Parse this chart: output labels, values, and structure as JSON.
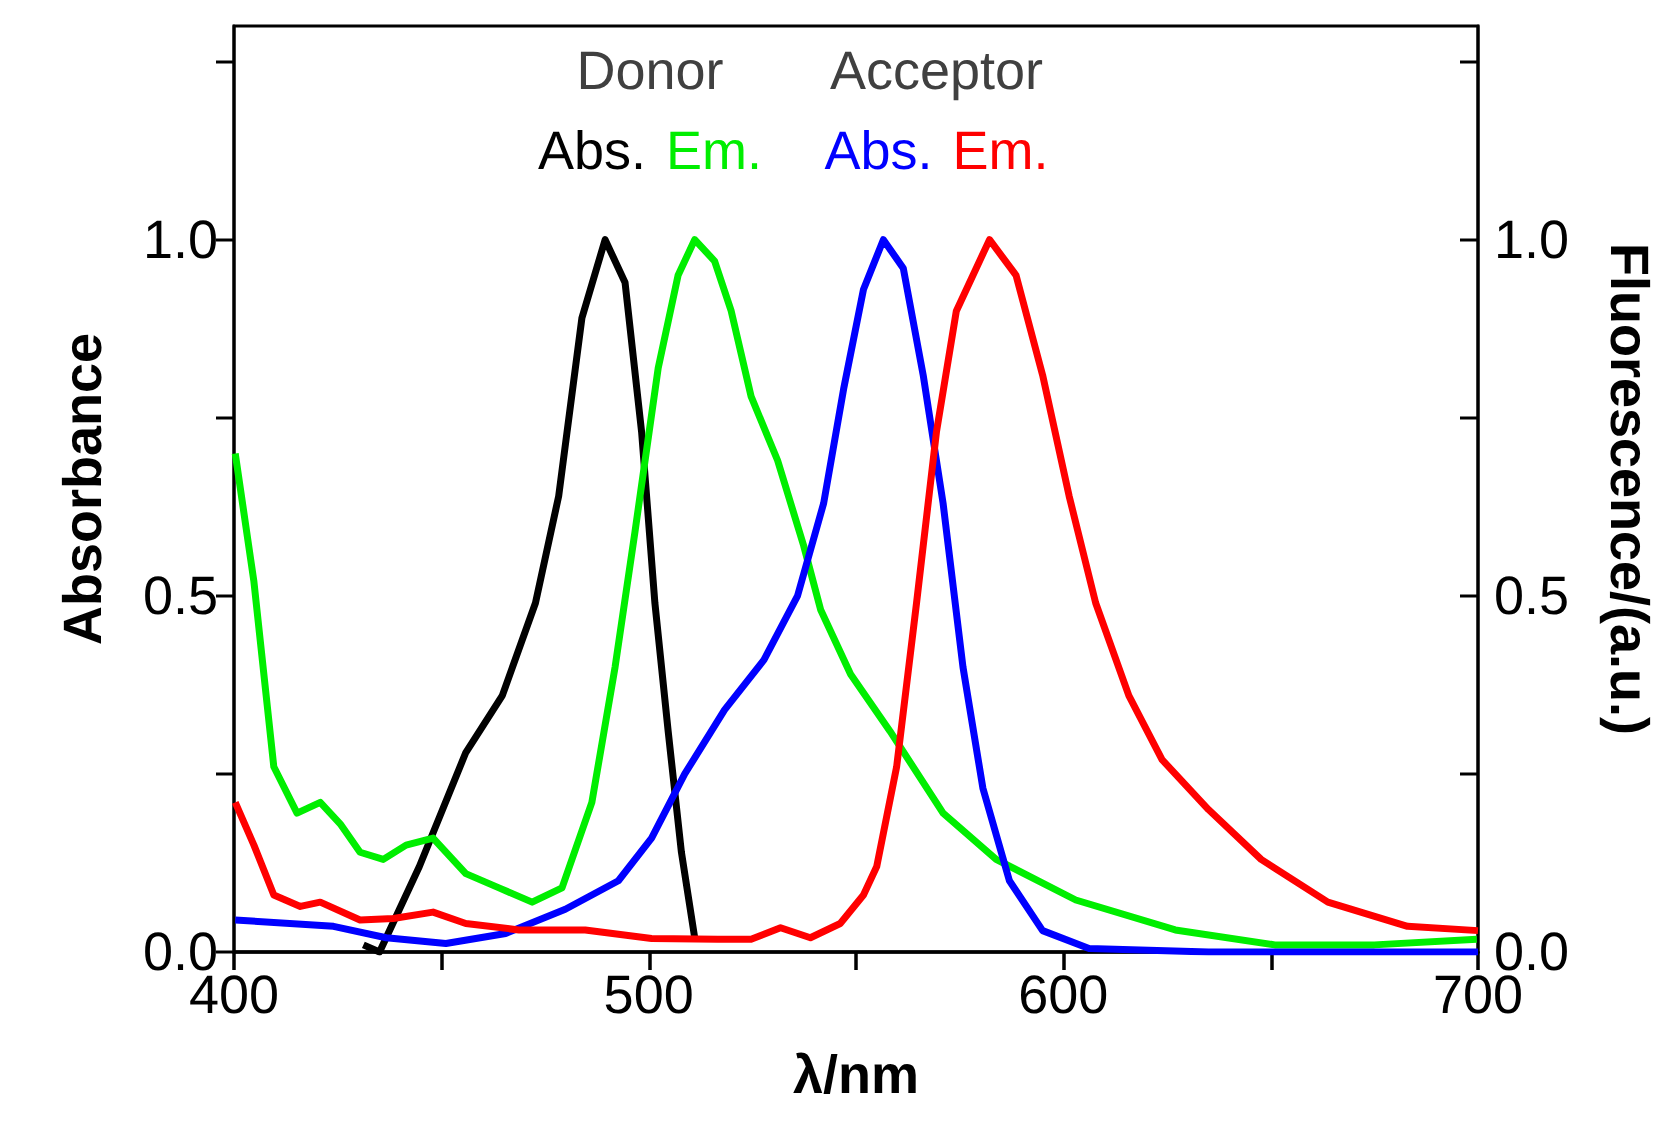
{
  "chart_data": {
    "type": "line",
    "xlabel": "λ/nm",
    "ylabel": "Absorbance",
    "y2label": "Fluorescence/(a.u.)",
    "annotations": [
      "Donor",
      "Acceptor"
    ],
    "xlim": [
      400,
      700
    ],
    "xticks": [
      400,
      {
        "value": 450,
        "label": null
      },
      500,
      {
        "value": 550,
        "label": null
      },
      600,
      {
        "value": 650,
        "label": null
      },
      700
    ],
    "ylim": [
      0,
      1.3
    ],
    "yticks": [
      {
        "value": 0,
        "label": "0.0"
      },
      {
        "value": 0.25,
        "label": null
      },
      0.5,
      {
        "value": 0.75,
        "label": null
      },
      {
        "value": 1,
        "label": "1.0"
      },
      {
        "value": 1.25,
        "label": null
      }
    ],
    "y2lim": [
      0,
      1.3
    ],
    "y2ticks": [
      {
        "value": 0,
        "label": "0.0"
      },
      {
        "value": 0.25,
        "label": null
      },
      0.5,
      {
        "value": 0.75,
        "label": null
      },
      {
        "value": 1,
        "label": "1.0"
      },
      {
        "value": 1.25,
        "label": null
      }
    ],
    "series": [
      {
        "name": "Abs.",
        "color": "#000000",
        "x": [
          431.2,
          435.1,
          444.7,
          455.9,
          464.7,
          472.7,
          478.3,
          483.9,
          489.5,
          494.3,
          498.3,
          501.5,
          504.7,
          507.9,
          511.1
        ],
        "values": [
          0.01,
          0,
          0.12,
          0.28,
          0.36,
          0.49,
          0.64,
          0.89,
          1.0,
          0.94,
          0.73,
          0.49,
          0.31,
          0.14,
          0.02
        ]
      },
      {
        "name": "Em.",
        "color": "#00ee00",
        "x": [
          400.3,
          404.8,
          409.6,
          415.2,
          420.8,
          425.6,
          430.4,
          436,
          441.5,
          448,
          455.9,
          463.9,
          471.9,
          479.1,
          486.3,
          491.9,
          496.7,
          502.3,
          507.1,
          511.1,
          515.9,
          519.9,
          524.7,
          531.1,
          537.4,
          541.5,
          548.7,
          558.2,
          571,
          583.8,
          603,
          627,
          651,
          675,
          699.7
        ],
        "values": [
          0.7,
          0.52,
          0.26,
          0.195,
          0.21,
          0.18,
          0.14,
          0.13,
          0.15,
          0.16,
          0.11,
          0.09,
          0.07,
          0.09,
          0.21,
          0.4,
          0.59,
          0.82,
          0.95,
          1.0,
          0.97,
          0.9,
          0.78,
          0.69,
          0.57,
          0.48,
          0.39,
          0.31,
          0.195,
          0.13,
          0.073,
          0.031,
          0.01,
          0.01,
          0.018
        ]
      },
      {
        "name": "Abs.",
        "color": "#0000ff",
        "x": [
          400.3,
          424,
          436.7,
          451.1,
          465.5,
          479.9,
          492.7,
          500.7,
          508.7,
          518.3,
          527.8,
          535.9,
          542.2,
          547,
          551.8,
          556.6,
          561.4,
          566.2,
          571,
          575.8,
          580.6,
          587,
          595,
          606.2,
          635,
          700
        ],
        "values": [
          0.045,
          0.036,
          0.02,
          0.012,
          0.026,
          0.06,
          0.1,
          0.16,
          0.25,
          0.34,
          0.41,
          0.5,
          0.63,
          0.79,
          0.93,
          1.0,
          0.96,
          0.81,
          0.63,
          0.4,
          0.23,
          0.1,
          0.03,
          0.005,
          0,
          0
        ]
      },
      {
        "name": "Em.",
        "color": "#ff0000",
        "x": [
          400.3,
          404.8,
          409.6,
          416,
          420.8,
          430.4,
          438.4,
          448,
          455.9,
          468.7,
          484.7,
          500.7,
          516.7,
          524.7,
          531.8,
          539,
          546.2,
          551.8,
          555,
          559.8,
          564.6,
          569.4,
          574.2,
          582.2,
          588.6,
          595,
          601.4,
          607.8,
          615.8,
          623.8,
          635,
          647.7,
          663.8,
          683,
          700
        ],
        "values": [
          0.21,
          0.15,
          0.08,
          0.064,
          0.07,
          0.045,
          0.047,
          0.056,
          0.04,
          0.031,
          0.031,
          0.019,
          0.018,
          0.018,
          0.034,
          0.02,
          0.04,
          0.08,
          0.12,
          0.26,
          0.49,
          0.73,
          0.9,
          1.0,
          0.95,
          0.81,
          0.64,
          0.49,
          0.36,
          0.27,
          0.2,
          0.13,
          0.07,
          0.036,
          0.03
        ]
      }
    ]
  }
}
